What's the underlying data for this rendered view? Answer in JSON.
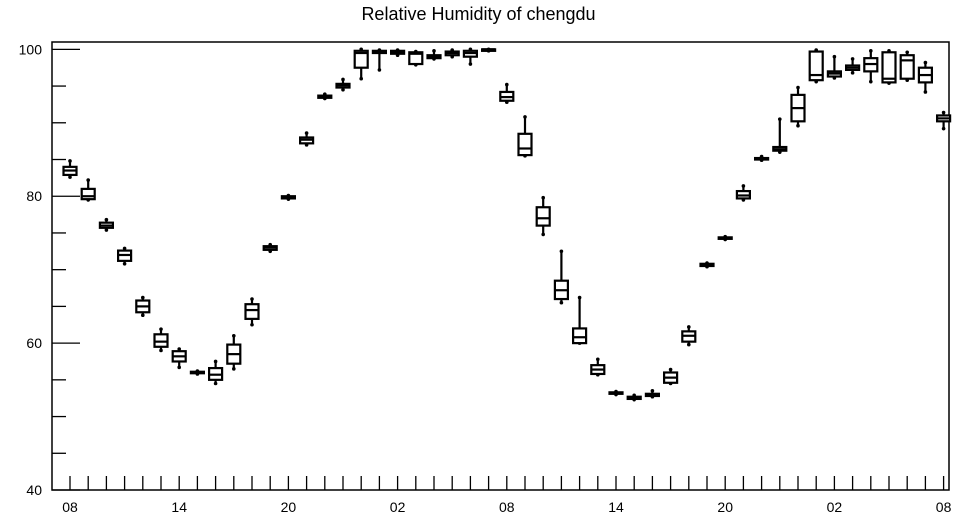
{
  "chart_data": {
    "type": "boxplot",
    "title": "Relative Humidity of chengdu",
    "xlabel": "",
    "ylabel": "",
    "ylim": [
      40,
      101
    ],
    "yticks": [
      40,
      60,
      80,
      100
    ],
    "x_labels": [
      "08",
      "",
      "",
      "",
      "",
      "",
      "14",
      "",
      "",
      "",
      "",
      "",
      "20",
      "",
      "",
      "",
      "",
      "",
      "02",
      "",
      "",
      "",
      "",
      "",
      "08",
      "",
      "",
      "",
      "",
      "",
      "14",
      "",
      "",
      "",
      "",
      "",
      "20",
      "",
      "",
      "",
      "",
      "",
      "02",
      "",
      "",
      "",
      "",
      "",
      "08"
    ],
    "x_tick_labels": [
      {
        "index": 0,
        "label": "08"
      },
      {
        "index": 6,
        "label": "14"
      },
      {
        "index": 12,
        "label": "20"
      },
      {
        "index": 18,
        "label": "02"
      },
      {
        "index": 24,
        "label": "08"
      },
      {
        "index": 30,
        "label": "14"
      },
      {
        "index": 36,
        "label": "20"
      },
      {
        "index": 42,
        "label": "02"
      },
      {
        "index": 48,
        "label": "08"
      }
    ],
    "boxes": [
      {
        "x": 0,
        "whisker_low": 82.6,
        "q1": 82.9,
        "median": 83.5,
        "q3": 84.0,
        "whisker_high": 84.8
      },
      {
        "x": 1,
        "whisker_low": 79.5,
        "q1": 79.6,
        "median": 80.0,
        "q3": 81.0,
        "whisker_high": 82.2
      },
      {
        "x": 2,
        "whisker_low": 75.4,
        "q1": 75.7,
        "median": 76.0,
        "q3": 76.4,
        "whisker_high": 76.8
      },
      {
        "x": 3,
        "whisker_low": 70.8,
        "q1": 71.2,
        "median": 72.0,
        "q3": 72.6,
        "whisker_high": 72.9
      },
      {
        "x": 4,
        "whisker_low": 63.8,
        "q1": 64.2,
        "median": 65.0,
        "q3": 65.8,
        "whisker_high": 66.2
      },
      {
        "x": 5,
        "whisker_low": 59.0,
        "q1": 59.5,
        "median": 60.2,
        "q3": 61.2,
        "whisker_high": 61.9
      },
      {
        "x": 6,
        "whisker_low": 56.7,
        "q1": 57.5,
        "median": 58.2,
        "q3": 58.9,
        "whisker_high": 59.2
      },
      {
        "x": 7,
        "whisker_low": 55.8,
        "q1": 55.9,
        "median": 56.0,
        "q3": 56.1,
        "whisker_high": 56.2
      },
      {
        "x": 8,
        "whisker_low": 54.5,
        "q1": 55.0,
        "median": 55.7,
        "q3": 56.6,
        "whisker_high": 57.5
      },
      {
        "x": 9,
        "whisker_low": 56.5,
        "q1": 57.2,
        "median": 58.5,
        "q3": 59.8,
        "whisker_high": 61.0
      },
      {
        "x": 10,
        "whisker_low": 62.5,
        "q1": 63.3,
        "median": 64.5,
        "q3": 65.3,
        "whisker_high": 66.0
      },
      {
        "x": 11,
        "whisker_low": 72.5,
        "q1": 72.7,
        "median": 73.0,
        "q3": 73.2,
        "whisker_high": 73.4
      },
      {
        "x": 12,
        "whisker_low": 79.6,
        "q1": 79.7,
        "median": 79.9,
        "q3": 80.0,
        "whisker_high": 80.1
      },
      {
        "x": 13,
        "whisker_low": 87.0,
        "q1": 87.2,
        "median": 87.7,
        "q3": 88.0,
        "whisker_high": 88.6
      },
      {
        "x": 14,
        "whisker_low": 93.3,
        "q1": 93.4,
        "median": 93.6,
        "q3": 93.7,
        "whisker_high": 93.9
      },
      {
        "x": 15,
        "whisker_low": 94.5,
        "q1": 94.8,
        "median": 95.1,
        "q3": 95.3,
        "whisker_high": 95.9
      },
      {
        "x": 16,
        "whisker_low": 96.0,
        "q1": 97.5,
        "median": 99.5,
        "q3": 99.8,
        "whisker_high": 100.0
      },
      {
        "x": 17,
        "whisker_low": 97.2,
        "q1": 99.5,
        "median": 99.7,
        "q3": 99.8,
        "whisker_high": 99.9
      },
      {
        "x": 18,
        "whisker_low": 99.2,
        "q1": 99.4,
        "median": 99.6,
        "q3": 99.8,
        "whisker_high": 99.9
      },
      {
        "x": 19,
        "whisker_low": 97.9,
        "q1": 98.0,
        "median": 99.4,
        "q3": 99.6,
        "whisker_high": 99.7
      },
      {
        "x": 20,
        "whisker_low": 98.7,
        "q1": 98.8,
        "median": 99.0,
        "q3": 99.2,
        "whisker_high": 99.8
      },
      {
        "x": 21,
        "whisker_low": 99.0,
        "q1": 99.2,
        "median": 99.5,
        "q3": 99.7,
        "whisker_high": 99.9
      },
      {
        "x": 22,
        "whisker_low": 98.0,
        "q1": 99.0,
        "median": 99.5,
        "q3": 99.8,
        "whisker_high": 100.0
      },
      {
        "x": 23,
        "whisker_low": 99.8,
        "q1": 99.9,
        "median": 100.0,
        "q3": 100.0,
        "whisker_high": 100.0
      },
      {
        "x": 24,
        "whisker_low": 92.8,
        "q1": 93.0,
        "median": 93.5,
        "q3": 94.2,
        "whisker_high": 95.2
      },
      {
        "x": 25,
        "whisker_low": 85.5,
        "q1": 85.6,
        "median": 86.5,
        "q3": 88.5,
        "whisker_high": 90.8
      },
      {
        "x": 26,
        "whisker_low": 74.8,
        "q1": 76.0,
        "median": 77.0,
        "q3": 78.5,
        "whisker_high": 79.8
      },
      {
        "x": 27,
        "whisker_low": 65.5,
        "q1": 66.0,
        "median": 67.2,
        "q3": 68.5,
        "whisker_high": 72.5
      },
      {
        "x": 28,
        "whisker_low": 60.0,
        "q1": 60.0,
        "median": 60.8,
        "q3": 62.0,
        "whisker_high": 66.2
      },
      {
        "x": 29,
        "whisker_low": 55.7,
        "q1": 55.8,
        "median": 56.4,
        "q3": 57.0,
        "whisker_high": 57.8
      },
      {
        "x": 30,
        "whisker_low": 53.0,
        "q1": 53.1,
        "median": 53.2,
        "q3": 53.3,
        "whisker_high": 53.4
      },
      {
        "x": 31,
        "whisker_low": 52.3,
        "q1": 52.4,
        "median": 52.6,
        "q3": 52.7,
        "whisker_high": 52.9
      },
      {
        "x": 32,
        "whisker_low": 52.7,
        "q1": 52.8,
        "median": 53.0,
        "q3": 53.1,
        "whisker_high": 53.5
      },
      {
        "x": 33,
        "whisker_low": 54.5,
        "q1": 54.6,
        "median": 55.3,
        "q3": 56.0,
        "whisker_high": 56.4
      },
      {
        "x": 34,
        "whisker_low": 59.8,
        "q1": 60.2,
        "median": 61.0,
        "q3": 61.6,
        "whisker_high": 62.2
      },
      {
        "x": 35,
        "whisker_low": 70.4,
        "q1": 70.5,
        "median": 70.6,
        "q3": 70.8,
        "whisker_high": 70.9
      },
      {
        "x": 36,
        "whisker_low": 74.1,
        "q1": 74.2,
        "median": 74.3,
        "q3": 74.4,
        "whisker_high": 74.5
      },
      {
        "x": 37,
        "whisker_low": 79.5,
        "q1": 79.7,
        "median": 80.1,
        "q3": 80.7,
        "whisker_high": 81.4
      },
      {
        "x": 38,
        "whisker_low": 84.9,
        "q1": 85.0,
        "median": 85.1,
        "q3": 85.2,
        "whisker_high": 85.4
      },
      {
        "x": 39,
        "whisker_low": 86.0,
        "q1": 86.2,
        "median": 86.4,
        "q3": 86.7,
        "whisker_high": 90.5
      },
      {
        "x": 40,
        "whisker_low": 89.6,
        "q1": 90.2,
        "median": 92.0,
        "q3": 93.8,
        "whisker_high": 94.8
      },
      {
        "x": 41,
        "whisker_low": 95.6,
        "q1": 95.8,
        "median": 96.5,
        "q3": 99.7,
        "whisker_high": 99.9
      },
      {
        "x": 42,
        "whisker_low": 96.1,
        "q1": 96.3,
        "median": 96.7,
        "q3": 97.0,
        "whisker_high": 99.0
      },
      {
        "x": 43,
        "whisker_low": 96.8,
        "q1": 97.2,
        "median": 97.5,
        "q3": 97.8,
        "whisker_high": 98.7
      },
      {
        "x": 44,
        "whisker_low": 95.6,
        "q1": 97.0,
        "median": 98.0,
        "q3": 98.8,
        "whisker_high": 99.8
      },
      {
        "x": 45,
        "whisker_low": 95.4,
        "q1": 95.5,
        "median": 96.0,
        "q3": 99.6,
        "whisker_high": 99.8
      },
      {
        "x": 46,
        "whisker_low": 95.8,
        "q1": 96.0,
        "median": 98.5,
        "q3": 99.2,
        "whisker_high": 99.6
      },
      {
        "x": 47,
        "whisker_low": 94.2,
        "q1": 95.5,
        "median": 96.5,
        "q3": 97.5,
        "whisker_high": 98.2
      },
      {
        "x": 48,
        "whisker_low": 89.2,
        "q1": 90.2,
        "median": 90.6,
        "q3": 91.0,
        "whisker_high": 91.4
      }
    ],
    "grid": false,
    "legend": "none"
  }
}
